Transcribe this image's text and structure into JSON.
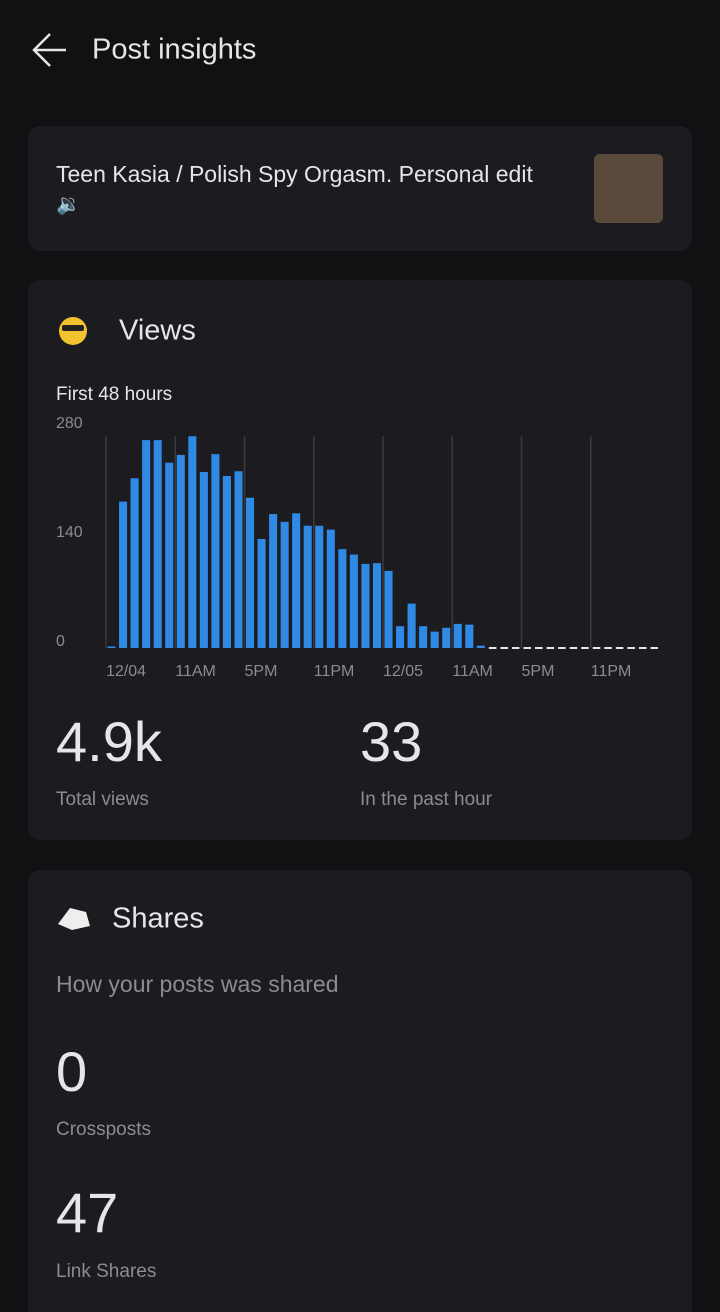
{
  "header": {
    "title": "Post insights"
  },
  "post": {
    "title": "Teen Kasia / Polish Spy Orgasm. Personal edit",
    "icon": "🔉"
  },
  "views": {
    "heading": "Views",
    "chart_data": {
      "type": "bar",
      "subtitle": "First 48 hours",
      "categories": [
        "12/04",
        null,
        null,
        null,
        null,
        null,
        "11AM",
        null,
        null,
        null,
        null,
        null,
        "5PM",
        null,
        null,
        null,
        null,
        null,
        "11PM",
        null,
        null,
        null,
        null,
        null,
        "12/05",
        null,
        null,
        null,
        null,
        null,
        "11AM",
        null,
        null,
        null,
        null,
        null,
        "5PM",
        null,
        null,
        null,
        null,
        null,
        "11PM",
        null,
        null,
        null,
        null,
        null
      ],
      "values": [
        2,
        188,
        218,
        267,
        267,
        238,
        248,
        272,
        226,
        249,
        221,
        227,
        193,
        140,
        172,
        162,
        173,
        157,
        157,
        152,
        127,
        120,
        108,
        109,
        99,
        28,
        57,
        28,
        21,
        26,
        31,
        30,
        3,
        null,
        null,
        null,
        null,
        null,
        null,
        null,
        null,
        null,
        null,
        null,
        null,
        null,
        null,
        null
      ],
      "color": "#2f8ae6",
      "ylim": [
        0,
        280
      ],
      "yticks": [
        0,
        140,
        280
      ]
    },
    "total": {
      "value": "4.9k",
      "label": "Total views"
    },
    "hour": {
      "value": "33",
      "label": "In the past hour"
    }
  },
  "shares": {
    "heading": "Shares",
    "subtitle": "How your posts was shared",
    "items": [
      {
        "value": "0",
        "label": "Crossposts"
      },
      {
        "value": "47",
        "label": "Link Shares"
      }
    ]
  }
}
